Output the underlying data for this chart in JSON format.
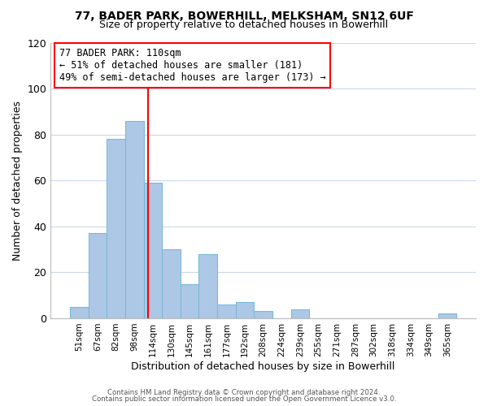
{
  "title_line1": "77, BADER PARK, BOWERHILL, MELKSHAM, SN12 6UF",
  "title_line2": "Size of property relative to detached houses in Bowerhill",
  "xlabel": "Distribution of detached houses by size in Bowerhill",
  "ylabel": "Number of detached properties",
  "bar_labels": [
    "51sqm",
    "67sqm",
    "82sqm",
    "98sqm",
    "114sqm",
    "130sqm",
    "145sqm",
    "161sqm",
    "177sqm",
    "192sqm",
    "208sqm",
    "224sqm",
    "239sqm",
    "255sqm",
    "271sqm",
    "287sqm",
    "302sqm",
    "318sqm",
    "334sqm",
    "349sqm",
    "365sqm"
  ],
  "bar_values": [
    5,
    37,
    78,
    86,
    59,
    30,
    15,
    28,
    6,
    7,
    3,
    0,
    4,
    0,
    0,
    0,
    0,
    0,
    0,
    0,
    2
  ],
  "bar_color": "#adc8e6",
  "bar_edgecolor": "#7ab8d9",
  "vline_color": "red",
  "vline_x": 3.75,
  "ylim": [
    0,
    120
  ],
  "yticks": [
    0,
    20,
    40,
    60,
    80,
    100,
    120
  ],
  "annotation_title": "77 BADER PARK: 110sqm",
  "annotation_line2": "← 51% of detached houses are smaller (181)",
  "annotation_line3": "49% of semi-detached houses are larger (173) →",
  "footnote_line1": "Contains HM Land Registry data © Crown copyright and database right 2024.",
  "footnote_line2": "Contains public sector information licensed under the Open Government Licence v3.0.",
  "background_color": "#ffffff",
  "grid_color": "#ccd8ea"
}
